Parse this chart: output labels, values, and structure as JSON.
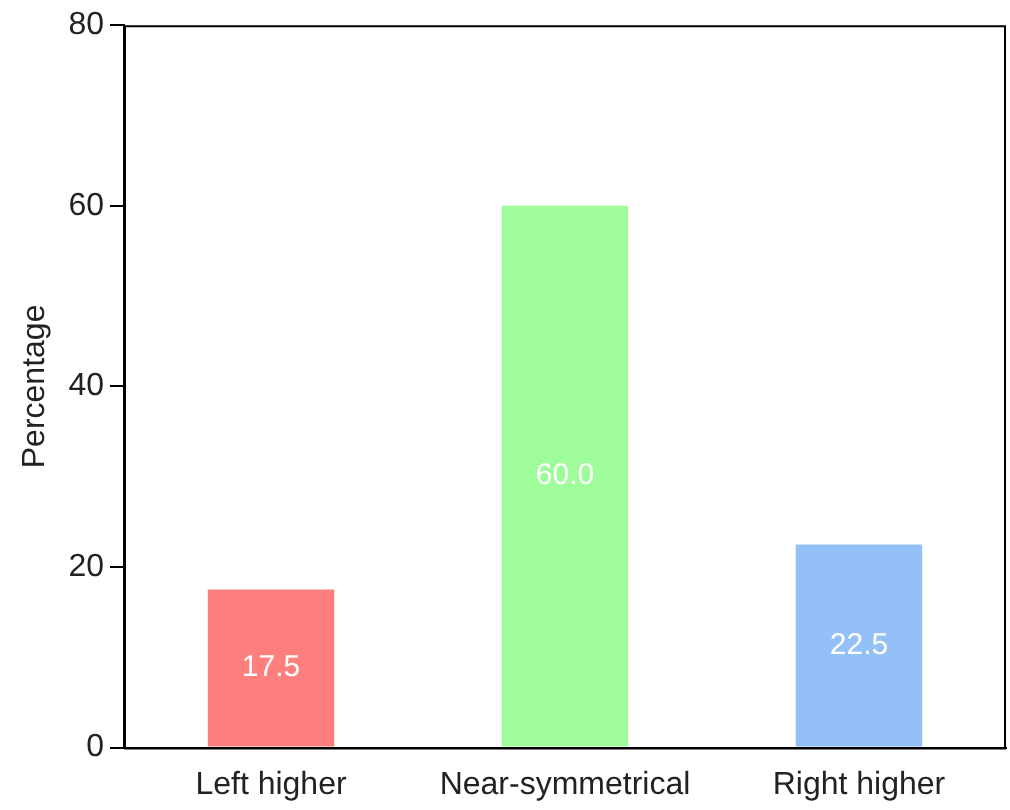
{
  "chart_data": {
    "type": "bar",
    "ylabel": "Percentage",
    "categories": [
      "Left higher",
      "Near-symmetrical",
      "Right higher"
    ],
    "values": [
      17.5,
      60.0,
      22.5
    ],
    "colors": [
      "#ff7f7f",
      "#9ffc9a",
      "#94c0f8"
    ],
    "value_labels": [
      "17.5",
      "60.0",
      "22.5"
    ],
    "ylim": [
      0,
      80
    ],
    "yticks": [
      0,
      20,
      40,
      60,
      80
    ],
    "grid": false,
    "legend": false
  }
}
